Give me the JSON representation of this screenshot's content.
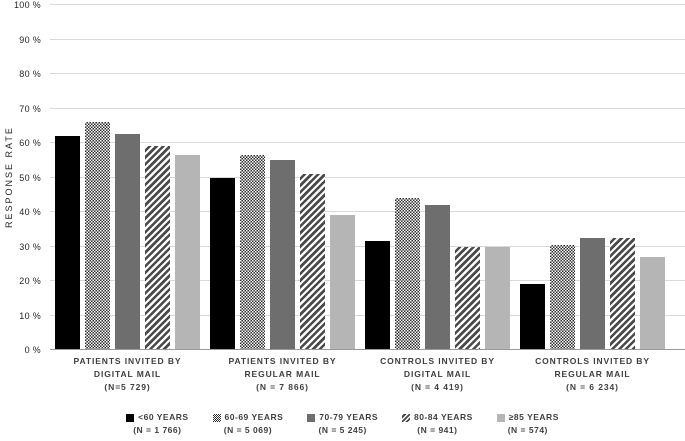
{
  "chart_data": {
    "type": "bar",
    "title": "",
    "ylabel": "RESPONSE RATE",
    "ylim": [
      0,
      100
    ],
    "ytick_labels": [
      "0 %",
      "10 %",
      "20 %",
      "30 %",
      "40 %",
      "50 %",
      "60 %",
      "70 %",
      "80 %",
      "90 %",
      "100 %"
    ],
    "grid": true,
    "grid_color": "#d9d9d9",
    "axis_color": "#9a9a9a",
    "legend_position": "bottom",
    "categories": [
      {
        "label_lines": [
          "PATIENTS INVITED BY",
          "DIGITAL MAIL",
          "(N=5 729)"
        ]
      },
      {
        "label_lines": [
          "PATIENTS INVITED BY",
          "REGULAR MAIL",
          "(N = 7 866)"
        ]
      },
      {
        "label_lines": [
          "CONTROLS INVITED BY",
          "DIGITAL MAIL",
          "(N = 4 419)"
        ]
      },
      {
        "label_lines": [
          "CONTROLS INVITED BY",
          "REGULAR MAIL",
          "(N = 6 234)"
        ]
      }
    ],
    "series": [
      {
        "name": "<60 YEARS",
        "n_label": "(N = 1 766)",
        "style": "solid",
        "color": "#000000",
        "values": [
          62,
          50,
          31.5,
          19
        ]
      },
      {
        "name": "60-69 YEARS",
        "n_label": "(N = 5 069)",
        "style": "checker",
        "color": "#2f2f2f",
        "values": [
          66,
          56.5,
          44,
          30.5
        ]
      },
      {
        "name": "70-79 YEARS",
        "n_label": "(N = 5 245)",
        "style": "solid",
        "color": "#6e6e6e",
        "values": [
          62.5,
          55,
          42,
          32.5
        ]
      },
      {
        "name": "80-84 YEARS",
        "n_label": "(N = 941)",
        "style": "hatch",
        "color": "#4a4a4a",
        "values": [
          59,
          51,
          30,
          32.5
        ]
      },
      {
        "name": "≥85 YEARS",
        "n_label": "(N = 574)",
        "style": "solid",
        "color": "#b5b5b5",
        "values": [
          56.5,
          39,
          30,
          27
        ]
      }
    ]
  }
}
